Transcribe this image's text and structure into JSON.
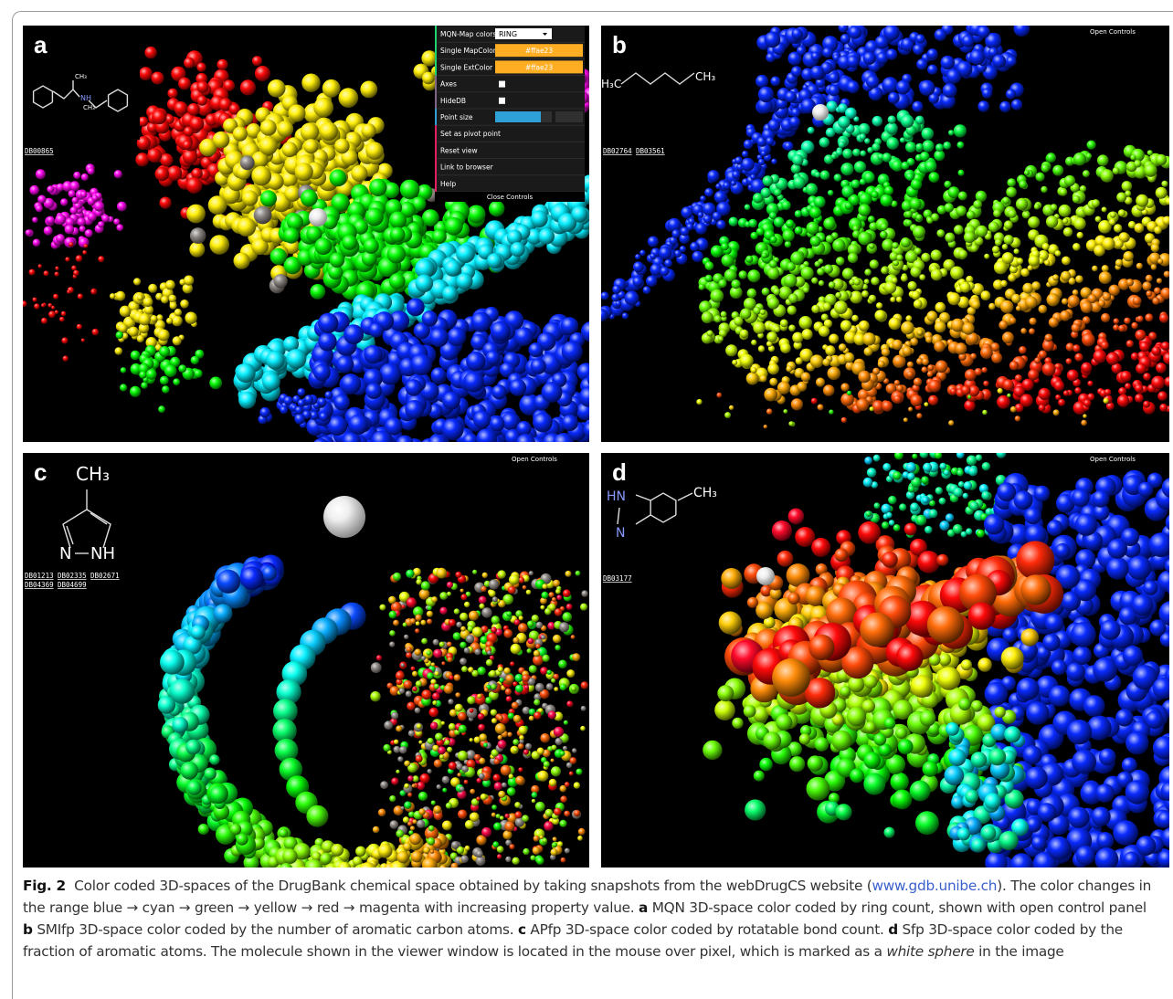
{
  "panels": [
    {
      "label": "a",
      "db_ids": [
        "DB00865"
      ],
      "molecule": [
        "CH₃",
        "NH",
        "CH₃"
      ],
      "controls": {
        "rows": [
          {
            "label": "MQN-Map colors",
            "value": "RING"
          },
          {
            "label": "Single MapColor",
            "value": "#ffae23"
          },
          {
            "label": "Single ExtColor",
            "value": "#ffae23"
          },
          {
            "label": "Axes"
          },
          {
            "label": "HideDB"
          },
          {
            "label": "Point size"
          },
          {
            "label": "Set as pivot point"
          },
          {
            "label": "Reset view"
          },
          {
            "label": "Link to browser"
          },
          {
            "label": "Help"
          }
        ],
        "close": "Close Controls"
      }
    },
    {
      "label": "b",
      "toggle": "Open Controls",
      "db_ids": [
        "DB02764",
        "DB03561"
      ],
      "molecule": [
        "H₃C",
        "CH₃"
      ]
    },
    {
      "label": "c",
      "toggle": "Open Controls",
      "db_ids": [
        "DB01213",
        "DB02335",
        "DB02671",
        "DB04369",
        "DB04699"
      ],
      "molecule": [
        "CH₃",
        "N",
        "NH"
      ]
    },
    {
      "label": "d",
      "toggle": "Open Controls",
      "db_ids": [
        "DB03177"
      ],
      "molecule": [
        "HN",
        "N",
        "CH₃"
      ]
    }
  ],
  "caption": [
    "Fig. 2",
    "Color coded 3D-spaces of the DrugBank chemical space obtained by taking snapshots from the webDrugCS website (",
    "www.gdb.unibe.ch",
    "). The color changes in the range blue → cyan → green → yellow → red → magenta with increasing property value. ",
    "a",
    " MQN 3D-space color coded by ring count, shown with open control panel ",
    "b",
    " SMIfp 3D-space color coded by the number of aromatic carbon atoms. ",
    "c",
    " APfp 3D-space color coded by rotatable bond count. ",
    "d",
    " Sfp 3D-space color coded by the fraction of aromatic atoms. The molecule shown in the viewer window is located in the mouse over pixel, which is marked as a ",
    "white sphere",
    " in the image"
  ]
}
